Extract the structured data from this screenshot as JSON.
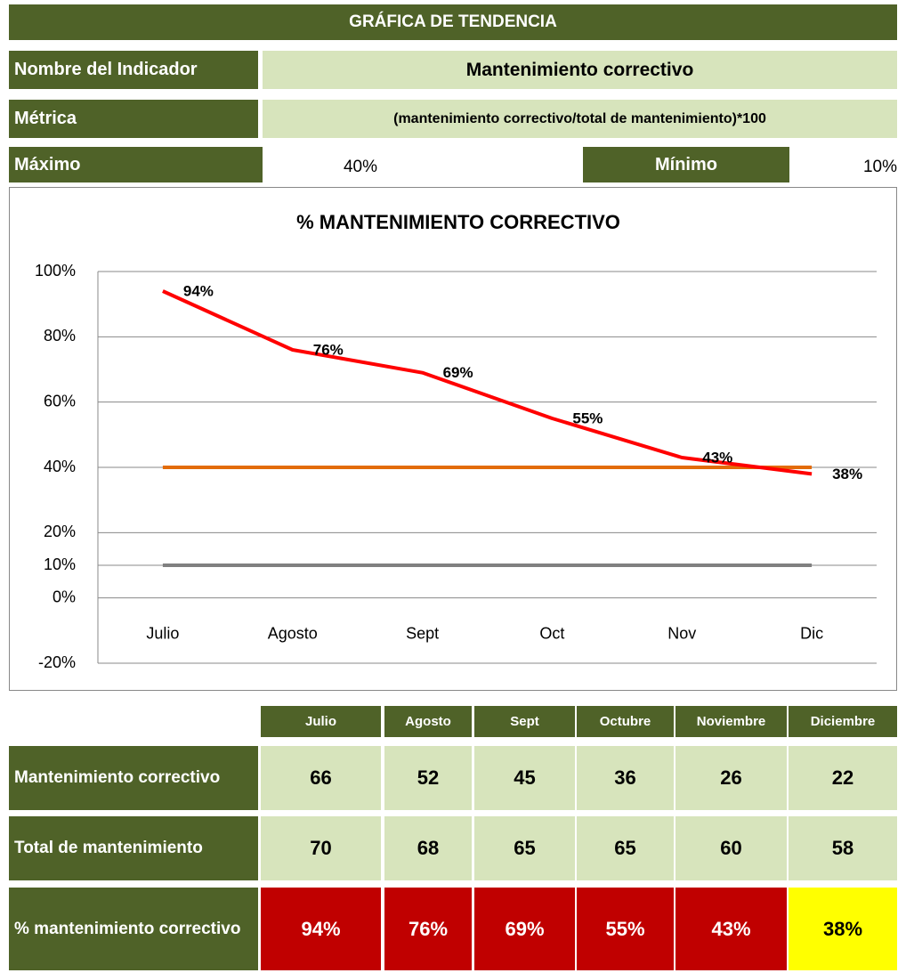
{
  "header": {
    "title": "GRÁFICA DE TENDENCIA"
  },
  "fields": {
    "indicator_label": "Nombre del Indicador",
    "indicator": "Mantenimiento correctivo",
    "metric_label": "Métrica",
    "metric": "(mantenimiento correctivo/total de mantenimiento)*100",
    "max_label": "Máximo",
    "max": "40%",
    "min_label": "Mínimo",
    "min": "10%"
  },
  "chart_data": {
    "type": "line",
    "title": "% MANTENIMIENTO CORRECTIVO",
    "categories": [
      "Julio",
      "Agosto",
      "Sept",
      "Oct",
      "Nov",
      "Dic"
    ],
    "ylim": [
      -20,
      100
    ],
    "yticks": [
      {
        "value": -20,
        "label": "-20%"
      },
      {
        "value": 0,
        "label": "0%"
      },
      {
        "value": 10,
        "label": "10%"
      },
      {
        "value": 20,
        "label": "20%"
      },
      {
        "value": 40,
        "label": "40%"
      },
      {
        "value": 60,
        "label": "60%"
      },
      {
        "value": 80,
        "label": "80%"
      },
      {
        "value": 100,
        "label": "100%"
      }
    ],
    "grid": true,
    "series": [
      {
        "color": "#808080",
        "values": [
          10,
          10,
          10,
          10,
          10,
          10
        ]
      },
      {
        "color": "#e36c09",
        "values": [
          40,
          40,
          40,
          40,
          40,
          40
        ]
      },
      {
        "color": "#ff0000",
        "values": [
          94,
          76,
          69,
          55,
          43,
          38
        ],
        "value_labels": [
          "94%",
          "76%",
          "69%",
          "55%",
          "43%",
          "38%"
        ]
      }
    ]
  },
  "table": {
    "columns": [
      "Julio",
      "Agosto",
      "Sept",
      "Octubre",
      "Noviembre",
      "Diciembre"
    ],
    "rows": [
      {
        "label": "Mantenimiento correctivo",
        "cells": [
          66,
          52,
          45,
          36,
          26,
          22
        ]
      },
      {
        "label": "Total de mantenimiento",
        "cells": [
          70,
          68,
          65,
          65,
          60,
          58
        ]
      },
      {
        "label": "% mantenimiento correctivo",
        "cells": [
          "94%",
          "76%",
          "69%",
          "55%",
          "43%",
          "38%"
        ]
      }
    ]
  }
}
